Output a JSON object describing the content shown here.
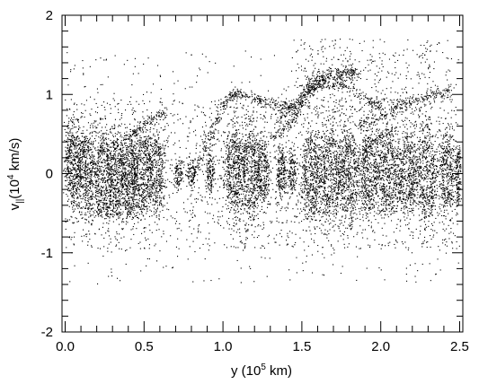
{
  "chart_data": {
    "type": "scatter",
    "title": "",
    "xlabel": {
      "prefix": "y (10",
      "sup": "5",
      "suffix": " km)"
    },
    "ylabel": {
      "main": "v",
      "sub": "||",
      "mid": "(10",
      "sup": "4",
      "suffix": " km/s)"
    },
    "xlim": [
      -0.02,
      2.52
    ],
    "ylim": [
      -2.0,
      2.0
    ],
    "x_ticks": [
      0.0,
      0.5,
      1.0,
      1.5,
      2.0,
      2.5
    ],
    "x_tick_labels": [
      "0.0",
      "0.5",
      "1.0",
      "1.5",
      "2.0",
      "2.5"
    ],
    "y_ticks": [
      -2,
      -1,
      0,
      1,
      2
    ],
    "y_tick_labels": [
      "-2",
      "-1",
      "0",
      "1",
      "2"
    ],
    "grid": false,
    "marker_color": "#000000",
    "background": "#ffffff",
    "regions": [
      {
        "kind": "blob",
        "x": 0.05,
        "y": 0.1,
        "sx": 0.035,
        "sy": 0.35,
        "n": 450
      },
      {
        "kind": "blob",
        "x": 0.13,
        "y": 0.05,
        "sx": 0.04,
        "sy": 0.32,
        "n": 420
      },
      {
        "kind": "blob",
        "x": 0.24,
        "y": 0.02,
        "sx": 0.045,
        "sy": 0.33,
        "n": 450
      },
      {
        "kind": "blob",
        "x": 0.33,
        "y": 0.05,
        "sx": 0.04,
        "sy": 0.35,
        "n": 430
      },
      {
        "kind": "blob",
        "x": 0.41,
        "y": 0.0,
        "sx": 0.035,
        "sy": 0.33,
        "n": 400
      },
      {
        "kind": "blob",
        "x": 0.49,
        "y": 0.02,
        "sx": 0.04,
        "sy": 0.34,
        "n": 420
      },
      {
        "kind": "blob",
        "x": 0.58,
        "y": 0.02,
        "sx": 0.04,
        "sy": 0.32,
        "n": 380
      },
      {
        "kind": "blob",
        "x": 0.3,
        "y": -0.45,
        "sx": 0.12,
        "sy": 0.07,
        "n": 200
      },
      {
        "kind": "blob",
        "x": 0.72,
        "y": 0.0,
        "sx": 0.02,
        "sy": 0.12,
        "n": 100
      },
      {
        "kind": "blob",
        "x": 0.8,
        "y": 0.0,
        "sx": 0.02,
        "sy": 0.1,
        "n": 90
      },
      {
        "kind": "blob",
        "x": 0.92,
        "y": 0.03,
        "sx": 0.018,
        "sy": 0.18,
        "n": 130
      },
      {
        "kind": "blob",
        "x": 1.07,
        "y": 0.05,
        "sx": 0.04,
        "sy": 0.38,
        "n": 480
      },
      {
        "kind": "blob",
        "x": 1.17,
        "y": 0.05,
        "sx": 0.04,
        "sy": 0.4,
        "n": 480
      },
      {
        "kind": "blob",
        "x": 1.25,
        "y": 0.0,
        "sx": 0.03,
        "sy": 0.3,
        "n": 300
      },
      {
        "kind": "blob",
        "x": 1.37,
        "y": 0.02,
        "sx": 0.02,
        "sy": 0.22,
        "n": 200
      },
      {
        "kind": "blob",
        "x": 1.44,
        "y": 0.02,
        "sx": 0.018,
        "sy": 0.18,
        "n": 150
      },
      {
        "kind": "blob",
        "x": 1.56,
        "y": 0.0,
        "sx": 0.045,
        "sy": 0.4,
        "n": 500
      },
      {
        "kind": "blob",
        "x": 1.68,
        "y": 0.0,
        "sx": 0.05,
        "sy": 0.4,
        "n": 550
      },
      {
        "kind": "blob",
        "x": 1.8,
        "y": 0.0,
        "sx": 0.045,
        "sy": 0.38,
        "n": 500
      },
      {
        "kind": "blob",
        "x": 1.93,
        "y": 0.0,
        "sx": 0.04,
        "sy": 0.36,
        "n": 460
      },
      {
        "kind": "blob",
        "x": 2.05,
        "y": 0.0,
        "sx": 0.045,
        "sy": 0.38,
        "n": 480
      },
      {
        "kind": "blob",
        "x": 2.17,
        "y": 0.0,
        "sx": 0.045,
        "sy": 0.38,
        "n": 480
      },
      {
        "kind": "blob",
        "x": 2.29,
        "y": 0.0,
        "sx": 0.045,
        "sy": 0.4,
        "n": 480
      },
      {
        "kind": "blob",
        "x": 2.42,
        "y": 0.0,
        "sx": 0.035,
        "sy": 0.35,
        "n": 360
      },
      {
        "kind": "blob",
        "x": 2.49,
        "y": 0.0,
        "sx": 0.012,
        "sy": 0.25,
        "n": 150
      },
      {
        "kind": "curve",
        "pts": [
          [
            0.4,
            0.45
          ],
          [
            0.48,
            0.6
          ],
          [
            0.55,
            0.7
          ],
          [
            0.63,
            0.78
          ]
        ],
        "w": 0.03,
        "n": 120
      },
      {
        "kind": "curve",
        "pts": [
          [
            0.8,
            -0.1
          ],
          [
            0.88,
            0.3
          ],
          [
            0.95,
            0.62
          ],
          [
            1.0,
            0.85
          ],
          [
            1.05,
            0.98
          ]
        ],
        "w": 0.03,
        "n": 160
      },
      {
        "kind": "curve",
        "pts": [
          [
            1.05,
            0.98
          ],
          [
            1.1,
            1.02
          ],
          [
            1.2,
            0.95
          ],
          [
            1.3,
            0.88
          ],
          [
            1.4,
            0.85
          ],
          [
            1.5,
            0.88
          ]
        ],
        "w": 0.035,
        "n": 220
      },
      {
        "kind": "curve",
        "pts": [
          [
            1.48,
            0.9
          ],
          [
            1.55,
            1.1
          ],
          [
            1.62,
            1.2
          ],
          [
            1.7,
            1.25
          ],
          [
            1.78,
            1.28
          ],
          [
            1.85,
            1.26
          ]
        ],
        "w": 0.045,
        "n": 340
      },
      {
        "kind": "curve",
        "pts": [
          [
            1.35,
            0.65
          ],
          [
            1.42,
            0.8
          ],
          [
            1.5,
            0.95
          ],
          [
            1.58,
            1.08
          ],
          [
            1.68,
            1.15
          ],
          [
            1.78,
            1.12
          ],
          [
            1.9,
            0.95
          ],
          [
            2.0,
            0.85
          ]
        ],
        "w": 0.035,
        "n": 280
      },
      {
        "kind": "curve",
        "pts": [
          [
            1.85,
            0.6
          ],
          [
            1.95,
            0.68
          ],
          [
            2.05,
            0.78
          ],
          [
            2.15,
            0.88
          ],
          [
            2.25,
            0.95
          ],
          [
            2.35,
            1.0
          ],
          [
            2.45,
            1.05
          ]
        ],
        "w": 0.035,
        "n": 220
      },
      {
        "kind": "curve",
        "pts": [
          [
            1.3,
            0.45
          ],
          [
            1.38,
            0.55
          ],
          [
            1.45,
            0.7
          ],
          [
            1.52,
            0.85
          ]
        ],
        "w": 0.025,
        "n": 90
      },
      {
        "kind": "curve",
        "pts": [
          [
            1.88,
            0.3
          ],
          [
            1.98,
            0.45
          ],
          [
            2.1,
            0.6
          ]
        ],
        "w": 0.025,
        "n": 80
      },
      {
        "kind": "band",
        "x0": 0.0,
        "x1": 2.5,
        "y0": -0.95,
        "y1": 0.95,
        "n": 1700
      },
      {
        "kind": "band",
        "x0": 0.0,
        "x1": 2.5,
        "y0": -1.4,
        "y1": 1.55,
        "n": 650
      },
      {
        "kind": "band",
        "x0": 1.45,
        "x1": 2.45,
        "y0": 0.7,
        "y1": 1.7,
        "n": 350
      }
    ]
  }
}
